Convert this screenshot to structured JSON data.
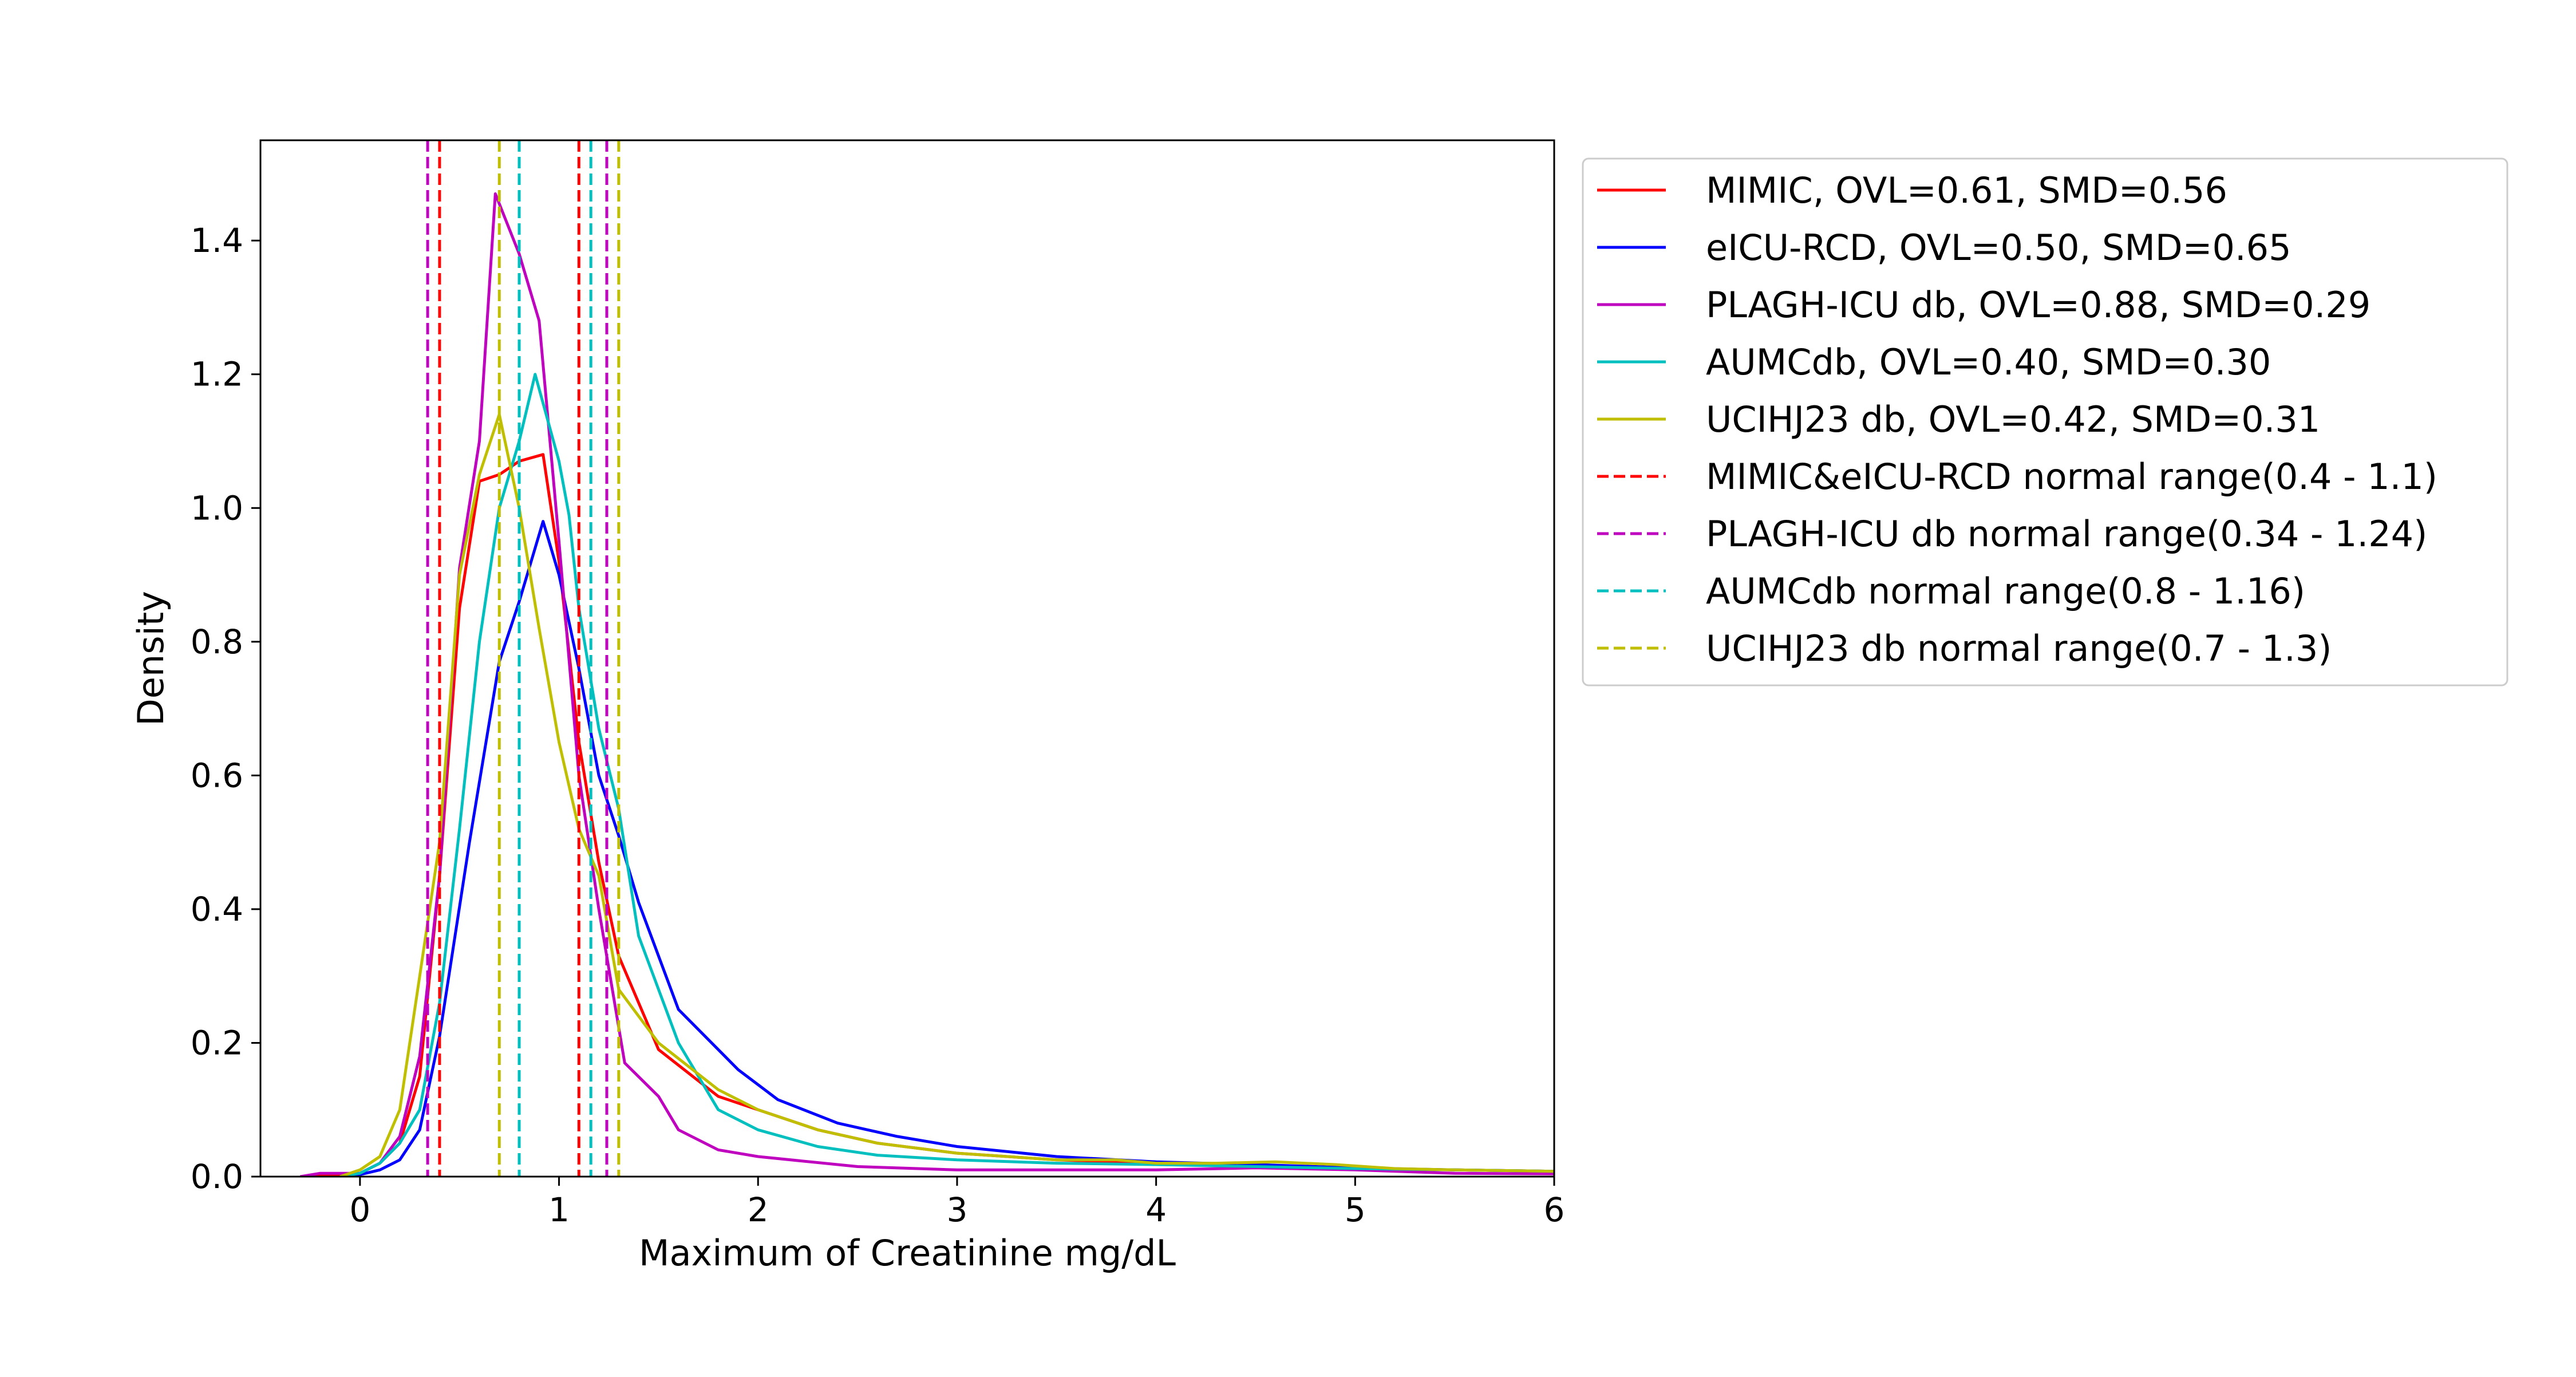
{
  "chart_data": {
    "type": "line",
    "title": "",
    "xlabel": "Maximum of Creatinine mg/dL",
    "ylabel": "Density",
    "xlim": [
      -0.5,
      6
    ],
    "ylim": [
      0,
      1.55
    ],
    "xticks": [
      "0",
      "1",
      "2",
      "3",
      "4",
      "5",
      "6"
    ],
    "yticks": [
      "0.0",
      "0.2",
      "0.4",
      "0.6",
      "0.8",
      "1.0",
      "1.2",
      "1.4"
    ],
    "grid": false,
    "legend_position": "outside-right",
    "series": [
      {
        "name": "MIMIC, OVL=0.61, SMD=0.56",
        "color": "#ff0000",
        "style": "solid",
        "points": [
          [
            -0.3,
            0.0
          ],
          [
            -0.1,
            0.002
          ],
          [
            0.0,
            0.005
          ],
          [
            0.1,
            0.02
          ],
          [
            0.2,
            0.05
          ],
          [
            0.3,
            0.15
          ],
          [
            0.4,
            0.45
          ],
          [
            0.5,
            0.85
          ],
          [
            0.6,
            1.04
          ],
          [
            0.7,
            1.05
          ],
          [
            0.8,
            1.07
          ],
          [
            0.92,
            1.08
          ],
          [
            1.0,
            0.92
          ],
          [
            1.1,
            0.65
          ],
          [
            1.2,
            0.47
          ],
          [
            1.3,
            0.33
          ],
          [
            1.5,
            0.19
          ],
          [
            1.8,
            0.12
          ],
          [
            2.0,
            0.1
          ],
          [
            2.3,
            0.07
          ],
          [
            2.6,
            0.05
          ],
          [
            3.0,
            0.035
          ],
          [
            3.5,
            0.025
          ],
          [
            4.0,
            0.02
          ],
          [
            4.5,
            0.018
          ],
          [
            5.0,
            0.012
          ],
          [
            5.5,
            0.01
          ],
          [
            6.0,
            0.008
          ]
        ]
      },
      {
        "name": "eICU-RCD, OVL=0.50, SMD=0.65",
        "color": "#0000ff",
        "style": "solid",
        "points": [
          [
            -0.1,
            0.0
          ],
          [
            0.0,
            0.003
          ],
          [
            0.1,
            0.01
          ],
          [
            0.2,
            0.025
          ],
          [
            0.3,
            0.07
          ],
          [
            0.4,
            0.21
          ],
          [
            0.55,
            0.5
          ],
          [
            0.7,
            0.77
          ],
          [
            0.8,
            0.86
          ],
          [
            0.92,
            0.98
          ],
          [
            1.0,
            0.9
          ],
          [
            1.1,
            0.76
          ],
          [
            1.2,
            0.6
          ],
          [
            1.3,
            0.51
          ],
          [
            1.4,
            0.41
          ],
          [
            1.6,
            0.25
          ],
          [
            1.9,
            0.16
          ],
          [
            2.1,
            0.115
          ],
          [
            2.4,
            0.08
          ],
          [
            2.7,
            0.06
          ],
          [
            3.0,
            0.045
          ],
          [
            3.5,
            0.03
          ],
          [
            4.0,
            0.022
          ],
          [
            4.5,
            0.018
          ],
          [
            5.0,
            0.013
          ],
          [
            5.5,
            0.01
          ],
          [
            6.0,
            0.008
          ]
        ]
      },
      {
        "name": "PLAGH-ICU db, OVL=0.88, SMD=0.29",
        "color": "#bf00bf",
        "style": "solid",
        "points": [
          [
            -0.3,
            0.0
          ],
          [
            -0.2,
            0.005
          ],
          [
            0.0,
            0.005
          ],
          [
            0.1,
            0.02
          ],
          [
            0.2,
            0.06
          ],
          [
            0.3,
            0.18
          ],
          [
            0.4,
            0.45
          ],
          [
            0.5,
            0.91
          ],
          [
            0.6,
            1.1
          ],
          [
            0.68,
            1.47
          ],
          [
            0.8,
            1.38
          ],
          [
            0.9,
            1.28
          ],
          [
            1.0,
            0.95
          ],
          [
            1.1,
            0.6
          ],
          [
            1.2,
            0.4
          ],
          [
            1.33,
            0.17
          ],
          [
            1.5,
            0.12
          ],
          [
            1.6,
            0.07
          ],
          [
            1.8,
            0.04
          ],
          [
            2.0,
            0.03
          ],
          [
            2.5,
            0.015
          ],
          [
            3.0,
            0.01
          ],
          [
            3.5,
            0.01
          ],
          [
            4.0,
            0.01
          ],
          [
            4.5,
            0.013
          ],
          [
            5.0,
            0.01
          ],
          [
            5.5,
            0.005
          ],
          [
            6.0,
            0.004
          ]
        ]
      },
      {
        "name": "AUMCdb, OVL=0.40, SMD=0.30",
        "color": "#00bfbf",
        "style": "solid",
        "points": [
          [
            -0.1,
            0.0
          ],
          [
            0.0,
            0.005
          ],
          [
            0.1,
            0.02
          ],
          [
            0.2,
            0.05
          ],
          [
            0.3,
            0.1
          ],
          [
            0.4,
            0.26
          ],
          [
            0.5,
            0.52
          ],
          [
            0.6,
            0.8
          ],
          [
            0.7,
            1.0
          ],
          [
            0.8,
            1.1
          ],
          [
            0.88,
            1.2
          ],
          [
            1.0,
            1.07
          ],
          [
            1.05,
            0.99
          ],
          [
            1.1,
            0.85
          ],
          [
            1.2,
            0.67
          ],
          [
            1.3,
            0.55
          ],
          [
            1.4,
            0.36
          ],
          [
            1.6,
            0.2
          ],
          [
            1.8,
            0.1
          ],
          [
            2.0,
            0.07
          ],
          [
            2.3,
            0.045
          ],
          [
            2.6,
            0.032
          ],
          [
            3.0,
            0.025
          ],
          [
            3.5,
            0.02
          ],
          [
            4.0,
            0.018
          ],
          [
            4.5,
            0.015
          ],
          [
            5.0,
            0.012
          ],
          [
            5.5,
            0.01
          ],
          [
            6.0,
            0.008
          ]
        ]
      },
      {
        "name": "UCIHJ23 db, OVL=0.42, SMD=0.31",
        "color": "#bfbf00",
        "style": "solid",
        "points": [
          [
            -0.1,
            0.0
          ],
          [
            0.0,
            0.01
          ],
          [
            0.1,
            0.03
          ],
          [
            0.2,
            0.1
          ],
          [
            0.3,
            0.3
          ],
          [
            0.4,
            0.5
          ],
          [
            0.5,
            0.9
          ],
          [
            0.6,
            1.05
          ],
          [
            0.7,
            1.14
          ],
          [
            0.8,
            1.0
          ],
          [
            0.9,
            0.82
          ],
          [
            1.0,
            0.65
          ],
          [
            1.1,
            0.52
          ],
          [
            1.2,
            0.45
          ],
          [
            1.3,
            0.28
          ],
          [
            1.5,
            0.2
          ],
          [
            1.8,
            0.13
          ],
          [
            2.0,
            0.1
          ],
          [
            2.3,
            0.07
          ],
          [
            2.6,
            0.05
          ],
          [
            3.0,
            0.035
          ],
          [
            3.5,
            0.025
          ],
          [
            3.8,
            0.025
          ],
          [
            4.0,
            0.02
          ],
          [
            4.3,
            0.02
          ],
          [
            4.6,
            0.022
          ],
          [
            4.9,
            0.018
          ],
          [
            5.2,
            0.012
          ],
          [
            5.5,
            0.01
          ],
          [
            6.0,
            0.008
          ]
        ]
      }
    ],
    "reference_lines": [
      {
        "name": "MIMIC&eICU-RCD normal range(0.4 - 1.1)",
        "color": "#ff0000",
        "style": "dashed",
        "x": [
          0.4,
          1.1
        ]
      },
      {
        "name": "PLAGH-ICU db normal range(0.34 - 1.24)",
        "color": "#bf00bf",
        "style": "dashed",
        "x": [
          0.34,
          1.24
        ]
      },
      {
        "name": "AUMCdb normal range(0.8 - 1.16)",
        "color": "#00bfbf",
        "style": "dashed",
        "x": [
          0.8,
          1.16
        ]
      },
      {
        "name": "UCIHJ23 db normal range(0.7 - 1.3)",
        "color": "#bfbf00",
        "style": "dashed",
        "x": [
          0.7,
          1.3
        ]
      }
    ]
  }
}
